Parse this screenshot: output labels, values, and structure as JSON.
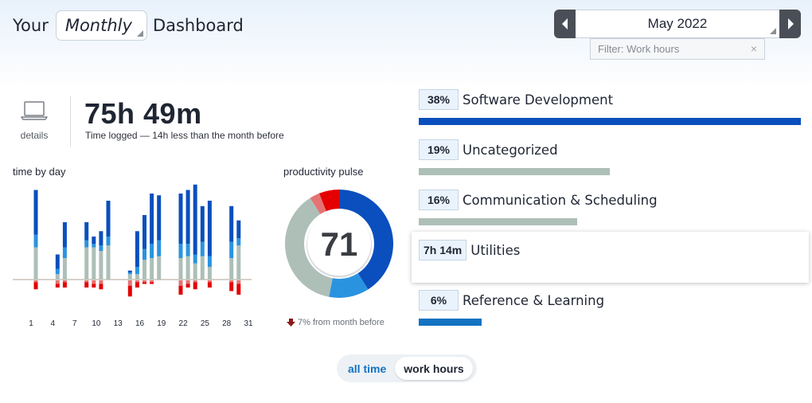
{
  "header": {
    "prefix": "Your",
    "period_value": "Monthly",
    "suffix": "Dashboard"
  },
  "month_nav": {
    "label": "May 2022"
  },
  "filter": {
    "placeholder": "Filter: Work hours"
  },
  "summary": {
    "details_label": "details",
    "total": "75h 49m",
    "subtitle": "Time logged — 14h less than the month before"
  },
  "time_by_day": {
    "title": "time by day",
    "x_ticks": [
      "1",
      "4",
      "7",
      "10",
      "13",
      "16",
      "19",
      "22",
      "25",
      "28",
      "31"
    ],
    "chart_data": {
      "type": "bar",
      "colors": {
        "very_productive": "#0a4fbd",
        "productive": "#2a93e0",
        "neutral": "#adbfb7",
        "distracting": "#e57373",
        "very_distracting": "#e40000"
      },
      "days": [
        {
          "day": 1,
          "vp": 2.5,
          "p": 0.7,
          "n": 1.8,
          "d": 0.1,
          "vd": 0.4
        },
        {
          "day": 2,
          "vp": 0,
          "p": 0,
          "n": 0,
          "d": 0,
          "vd": 0
        },
        {
          "day": 3,
          "vp": 0,
          "p": 0,
          "n": 0,
          "d": 0,
          "vd": 0
        },
        {
          "day": 4,
          "vp": 0.8,
          "p": 0.3,
          "n": 0.3,
          "d": 0.2,
          "vd": 0.2
        },
        {
          "day": 5,
          "vp": 1.4,
          "p": 0.6,
          "n": 1.2,
          "d": 0.1,
          "vd": 0.3
        },
        {
          "day": 6,
          "vp": 0,
          "p": 0,
          "n": 0,
          "d": 0,
          "vd": 0
        },
        {
          "day": 7,
          "vp": 0,
          "p": 0,
          "n": 0,
          "d": 0,
          "vd": 0
        },
        {
          "day": 8,
          "vp": 1.0,
          "p": 0.4,
          "n": 1.8,
          "d": 0.1,
          "vd": 0.3
        },
        {
          "day": 9,
          "vp": 0.4,
          "p": 0.2,
          "n": 1.8,
          "d": 0.2,
          "vd": 0.2
        },
        {
          "day": 10,
          "vp": 0.8,
          "p": 0.3,
          "n": 1.6,
          "d": 0.2,
          "vd": 0.3
        },
        {
          "day": 11,
          "vp": 2.0,
          "p": 0.5,
          "n": 1.9,
          "d": 0,
          "vd": 0
        },
        {
          "day": 12,
          "vp": 0,
          "p": 0,
          "n": 0,
          "d": 0,
          "vd": 0
        },
        {
          "day": 13,
          "vp": 0,
          "p": 0,
          "n": 0,
          "d": 0,
          "vd": 0
        },
        {
          "day": 14,
          "vp": 0.1,
          "p": 0.1,
          "n": 0.3,
          "d": 0.3,
          "vd": 0.6
        },
        {
          "day": 15,
          "vp": 2.0,
          "p": 0.4,
          "n": 0.3,
          "d": 0.1,
          "vd": 0.3
        },
        {
          "day": 16,
          "vp": 1.9,
          "p": 0.6,
          "n": 1.1,
          "d": 0.1,
          "vd": 0.1
        },
        {
          "day": 17,
          "vp": 2.8,
          "p": 0.8,
          "n": 1.2,
          "d": 0.1,
          "vd": 0.1
        },
        {
          "day": 18,
          "vp": 2.5,
          "p": 0.9,
          "n": 1.3,
          "d": 0,
          "vd": 0
        },
        {
          "day": 19,
          "vp": 0,
          "p": 0,
          "n": 0,
          "d": 0,
          "vd": 0
        },
        {
          "day": 20,
          "vp": 0,
          "p": 0,
          "n": 0,
          "d": 0,
          "vd": 0
        },
        {
          "day": 21,
          "vp": 2.8,
          "p": 0.8,
          "n": 1.2,
          "d": 0.3,
          "vd": 0.5
        },
        {
          "day": 22,
          "vp": 3.0,
          "p": 0.7,
          "n": 1.3,
          "d": 0.2,
          "vd": 0.2
        },
        {
          "day": 23,
          "vp": 3.9,
          "p": 0.5,
          "n": 0.9,
          "d": 0.1,
          "vd": 0.4
        },
        {
          "day": 24,
          "vp": 2.0,
          "p": 0.8,
          "n": 1.3,
          "d": 0,
          "vd": 0
        },
        {
          "day": 25,
          "vp": 3.1,
          "p": 0.6,
          "n": 0.7,
          "d": 0.1,
          "vd": 0.3
        },
        {
          "day": 26,
          "vp": 0,
          "p": 0,
          "n": 0,
          "d": 0,
          "vd": 0
        },
        {
          "day": 27,
          "vp": 0,
          "p": 0,
          "n": 0,
          "d": 0,
          "vd": 0
        },
        {
          "day": 28,
          "vp": 2.0,
          "p": 0.9,
          "n": 1.2,
          "d": 0.1,
          "vd": 0.5
        },
        {
          "day": 29,
          "vp": 1.0,
          "p": 0.4,
          "n": 1.9,
          "d": 0.2,
          "vd": 0.6
        },
        {
          "day": 30,
          "vp": 0,
          "p": 0,
          "n": 0,
          "d": 0,
          "vd": 0
        },
        {
          "day": 31,
          "vp": 0,
          "p": 0,
          "n": 0,
          "d": 0,
          "vd": 0
        }
      ]
    }
  },
  "productivity_pulse": {
    "title": "productivity pulse",
    "score": "71",
    "change_text": "7% from month before",
    "change_direction": "down",
    "chart_data": {
      "type": "pie",
      "slices": [
        {
          "category": "very_productive",
          "value": 41,
          "color": "#0a4fbd"
        },
        {
          "category": "productive",
          "value": 12,
          "color": "#2a93e0"
        },
        {
          "category": "neutral",
          "value": 38,
          "color": "#adbfb7"
        },
        {
          "category": "distracting",
          "value": 3,
          "color": "#e57373"
        },
        {
          "category": "very_distracting",
          "value": 6,
          "color": "#e40000"
        }
      ]
    }
  },
  "categories": [
    {
      "pct": "38%",
      "name": "Software Development",
      "share": 1.0,
      "color": "#0a4fbd"
    },
    {
      "pct": "19%",
      "name": "Uncategorized",
      "share": 0.5,
      "color": "#adbfb7"
    },
    {
      "pct": "16%",
      "name": "Communication & Scheduling",
      "share": 0.415,
      "color": "#adbfb7"
    },
    {
      "pct": "7h 14m",
      "name": "Utilities",
      "share": 0.19,
      "color": "#adbfb7"
    },
    {
      "pct": "6%",
      "name": "Reference & Learning",
      "share": 0.165,
      "color": "#1372c2"
    }
  ],
  "toggle": {
    "all_time": "all time",
    "work_hours": "work hours",
    "active": "work hours"
  },
  "icons": {
    "prev": "chevron-left-icon",
    "next": "chevron-right-icon",
    "details": "laptop-icon",
    "clear": "close-icon",
    "down": "arrow-down-icon"
  }
}
